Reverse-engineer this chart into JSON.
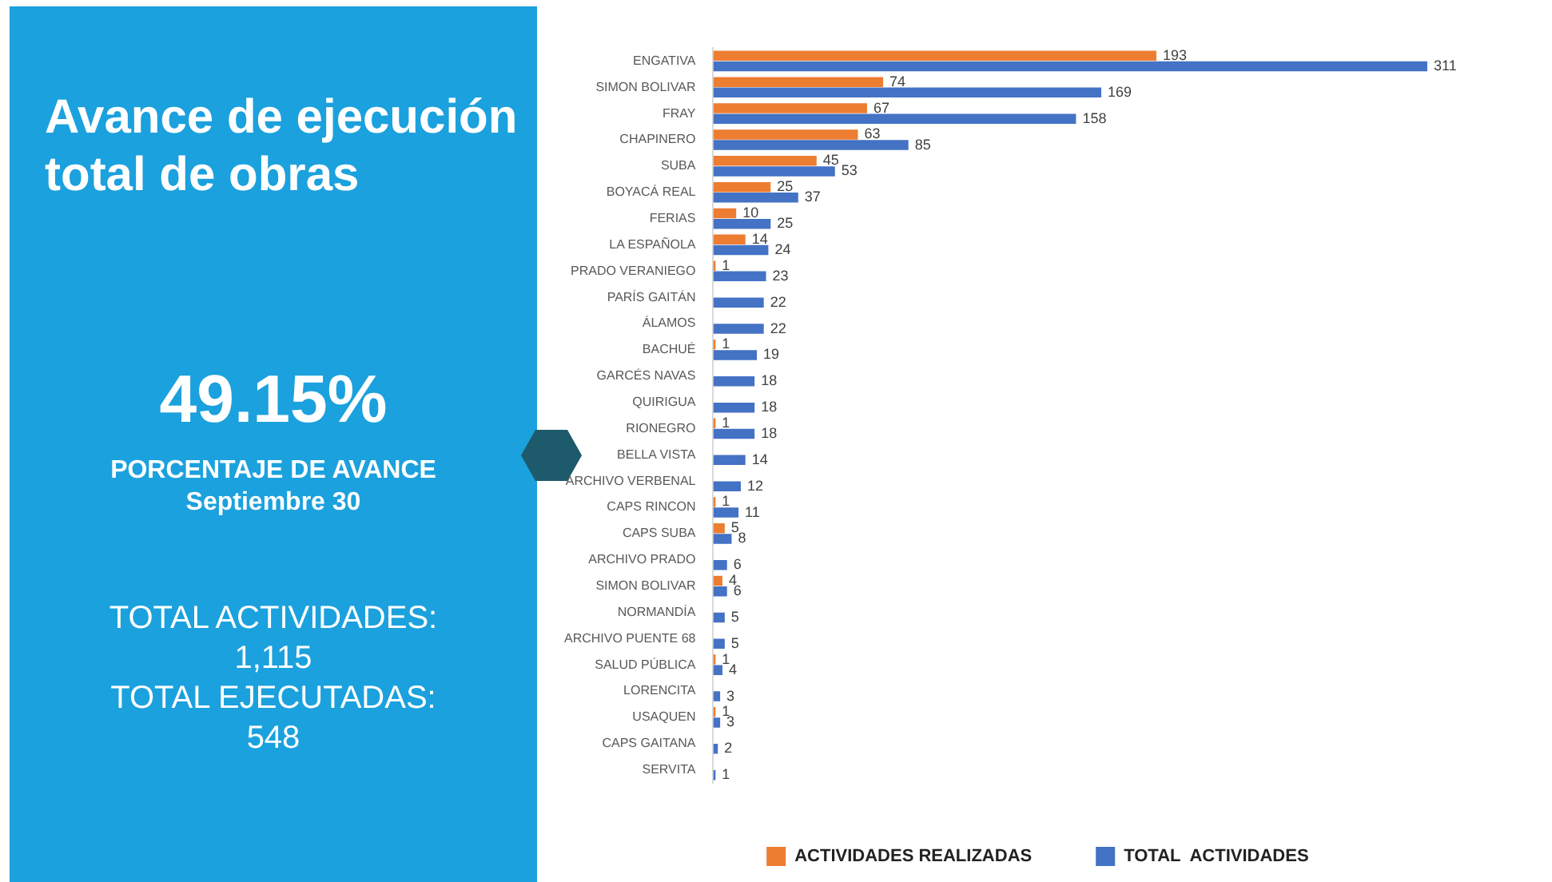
{
  "chart_data": {
    "type": "bar",
    "orientation": "horizontal",
    "title": "Avance de ejecución total de obras",
    "annotations": [
      "49.15%",
      "PORCENTAJE DE AVANCE",
      "Septiembre 30",
      "TOTAL  ACTIVIDADES:",
      "1,115",
      "TOTAL EJECUTADAS:",
      "548"
    ],
    "categories": [
      "ENGATIVA",
      "SIMON BOLIVAR",
      "FRAY",
      "CHAPINERO",
      "SUBA",
      "BOYACÁ REAL",
      "FERIAS",
      "LA ESPAÑOLA",
      "PRADO VERANIEGO",
      "PARÍS GAITÁN",
      "ÁLAMOS",
      "BACHUÉ",
      "GARCÉS NAVAS",
      "QUIRIGUA",
      "RIONEGRO",
      "BELLA VISTA",
      "ARCHIVO VERBENAL",
      "CAPS RINCON",
      "CAPS SUBA",
      "ARCHIVO PRADO",
      "SIMON BOLIVAR",
      "NORMANDÍA",
      "ARCHIVO PUENTE 68",
      "SALUD PÚBLICA",
      "LORENCITA",
      "USAQUEN",
      "CAPS GAITANA",
      "SERVITA"
    ],
    "series": [
      {
        "name": "ACTIVIDADES REALIZADAS",
        "color": "#ed7d31",
        "values": [
          193,
          74,
          67,
          63,
          45,
          25,
          10,
          14,
          1,
          null,
          null,
          1,
          null,
          null,
          1,
          null,
          null,
          1,
          5,
          null,
          4,
          null,
          null,
          1,
          null,
          1,
          null,
          null
        ]
      },
      {
        "name": "TOTAL  ACTIVIDADES",
        "color": "#4472c4",
        "values": [
          311,
          169,
          158,
          85,
          53,
          37,
          25,
          24,
          23,
          22,
          22,
          19,
          18,
          18,
          18,
          14,
          12,
          11,
          8,
          6,
          6,
          5,
          5,
          4,
          3,
          3,
          2,
          1
        ]
      }
    ],
    "data_labels": true,
    "legend": "bottom",
    "tick_labels": "y",
    "grid": false
  }
}
